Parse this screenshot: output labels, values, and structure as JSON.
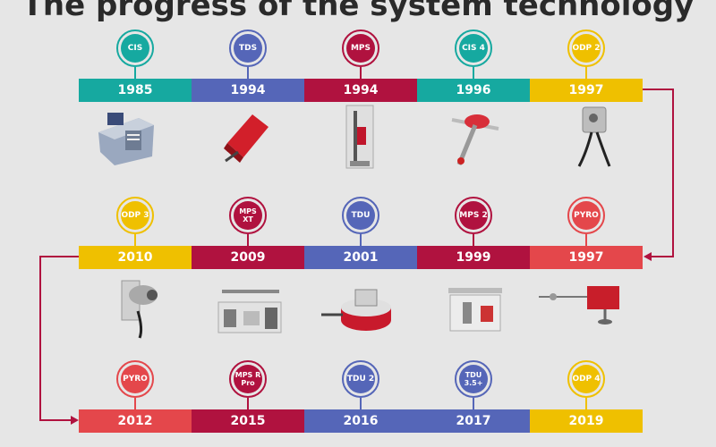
{
  "title": "The progress of the system technology",
  "colors": {
    "teal": "#16a9a0",
    "blue": "#5566b8",
    "crimson": "#b0123f",
    "yellow": "#efc000",
    "red": "#e4474b",
    "connector": "#b0123f"
  },
  "rows": [
    {
      "items": [
        {
          "label": "CIS",
          "year": "1985",
          "color": "teal"
        },
        {
          "label": "TDS",
          "year": "1994",
          "color": "blue"
        },
        {
          "label": "MPS",
          "year": "1994",
          "color": "crimson"
        },
        {
          "label": "CIS 4",
          "year": "1996",
          "color": "teal"
        },
        {
          "label": "ODP 2",
          "year": "1997",
          "color": "yellow"
        }
      ]
    },
    {
      "items": [
        {
          "label": "ODP 3",
          "year": "2010",
          "color": "yellow"
        },
        {
          "label": "MPS XT",
          "year": "2009",
          "color": "crimson"
        },
        {
          "label": "TDU",
          "year": "2001",
          "color": "blue"
        },
        {
          "label": "MPS 2",
          "year": "1999",
          "color": "crimson"
        },
        {
          "label": "PYRO",
          "year": "1997",
          "color": "red"
        }
      ]
    },
    {
      "items": [
        {
          "label": "PYRO",
          "year": "2012",
          "color": "red"
        },
        {
          "label": "MPS R Pro",
          "year": "2015",
          "color": "crimson"
        },
        {
          "label": "TDU 2",
          "year": "2016",
          "color": "blue"
        },
        {
          "label": "TDU 3.5+",
          "year": "2017",
          "color": "blue"
        },
        {
          "label": "ODP 4",
          "year": "2019",
          "color": "yellow"
        }
      ]
    }
  ]
}
